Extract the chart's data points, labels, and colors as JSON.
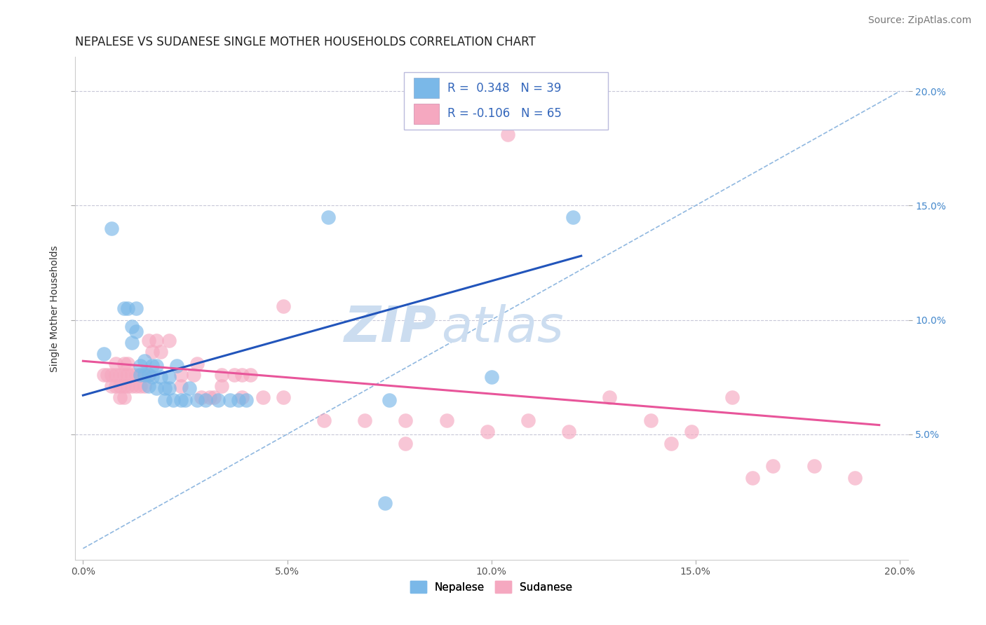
{
  "title": "NEPALESE VS SUDANESE SINGLE MOTHER HOUSEHOLDS CORRELATION CHART",
  "source": "Source: ZipAtlas.com",
  "ylabel": "Single Mother Households",
  "xlim": [
    -0.002,
    0.202
  ],
  "ylim": [
    -0.005,
    0.215
  ],
  "x_ticks": [
    0.0,
    0.05,
    0.1,
    0.15,
    0.2
  ],
  "x_tick_labels": [
    "0.0%",
    "5.0%",
    "10.0%",
    "15.0%",
    "20.0%"
  ],
  "y_ticks": [
    0.05,
    0.1,
    0.15,
    0.2
  ],
  "y_tick_labels": [
    "5.0%",
    "10.0%",
    "15.0%",
    "20.0%"
  ],
  "legend_entry1_label": "R =  0.348   N = 39",
  "legend_entry2_label": "R = -0.106   N = 65",
  "nepalese_color": "#7ab8e8",
  "sudanese_color": "#f5a8c0",
  "nepalese_scatter_alpha": 0.65,
  "sudanese_scatter_alpha": 0.65,
  "nepalese_line_color": "#2255bb",
  "sudanese_line_color": "#e8559a",
  "dashed_line_color": "#90b8e0",
  "legend_box_color": "#a8c8e8",
  "legend_box_color2": "#f5b8cc",
  "watermark_zip": "ZIP",
  "watermark_atlas": "atlas",
  "watermark_color": "#ccddf0",
  "background_color": "#ffffff",
  "grid_color": "#c8c8d8",
  "title_fontsize": 12,
  "source_fontsize": 10,
  "axis_label_fontsize": 10,
  "tick_fontsize": 10,
  "legend_fontsize": 12,
  "watermark_fontsize_zip": 52,
  "watermark_fontsize_atlas": 52,
  "scatter_size": 220,
  "nepalese_points": [
    [
      0.005,
      0.085
    ],
    [
      0.007,
      0.14
    ],
    [
      0.01,
      0.105
    ],
    [
      0.011,
      0.105
    ],
    [
      0.012,
      0.09
    ],
    [
      0.012,
      0.097
    ],
    [
      0.013,
      0.105
    ],
    [
      0.013,
      0.095
    ],
    [
      0.014,
      0.08
    ],
    [
      0.014,
      0.076
    ],
    [
      0.015,
      0.082
    ],
    [
      0.015,
      0.076
    ],
    [
      0.016,
      0.076
    ],
    [
      0.016,
      0.071
    ],
    [
      0.017,
      0.08
    ],
    [
      0.017,
      0.075
    ],
    [
      0.018,
      0.08
    ],
    [
      0.018,
      0.07
    ],
    [
      0.019,
      0.075
    ],
    [
      0.02,
      0.07
    ],
    [
      0.02,
      0.065
    ],
    [
      0.021,
      0.075
    ],
    [
      0.021,
      0.07
    ],
    [
      0.022,
      0.065
    ],
    [
      0.023,
      0.08
    ],
    [
      0.024,
      0.065
    ],
    [
      0.025,
      0.065
    ],
    [
      0.026,
      0.07
    ],
    [
      0.028,
      0.065
    ],
    [
      0.03,
      0.065
    ],
    [
      0.033,
      0.065
    ],
    [
      0.036,
      0.065
    ],
    [
      0.038,
      0.065
    ],
    [
      0.04,
      0.065
    ],
    [
      0.06,
      0.145
    ],
    [
      0.074,
      0.02
    ],
    [
      0.075,
      0.065
    ],
    [
      0.1,
      0.075
    ],
    [
      0.12,
      0.145
    ]
  ],
  "sudanese_points": [
    [
      0.005,
      0.076
    ],
    [
      0.006,
      0.076
    ],
    [
      0.007,
      0.076
    ],
    [
      0.007,
      0.071
    ],
    [
      0.008,
      0.081
    ],
    [
      0.008,
      0.076
    ],
    [
      0.008,
      0.071
    ],
    [
      0.009,
      0.076
    ],
    [
      0.009,
      0.071
    ],
    [
      0.009,
      0.066
    ],
    [
      0.01,
      0.081
    ],
    [
      0.01,
      0.076
    ],
    [
      0.01,
      0.071
    ],
    [
      0.01,
      0.066
    ],
    [
      0.011,
      0.081
    ],
    [
      0.011,
      0.076
    ],
    [
      0.011,
      0.071
    ],
    [
      0.012,
      0.076
    ],
    [
      0.012,
      0.071
    ],
    [
      0.013,
      0.076
    ],
    [
      0.013,
      0.071
    ],
    [
      0.014,
      0.076
    ],
    [
      0.014,
      0.071
    ],
    [
      0.015,
      0.076
    ],
    [
      0.015,
      0.071
    ],
    [
      0.016,
      0.076
    ],
    [
      0.016,
      0.091
    ],
    [
      0.017,
      0.086
    ],
    [
      0.018,
      0.091
    ],
    [
      0.019,
      0.086
    ],
    [
      0.021,
      0.091
    ],
    [
      0.024,
      0.076
    ],
    [
      0.024,
      0.071
    ],
    [
      0.027,
      0.076
    ],
    [
      0.028,
      0.081
    ],
    [
      0.029,
      0.066
    ],
    [
      0.031,
      0.066
    ],
    [
      0.032,
      0.066
    ],
    [
      0.034,
      0.071
    ],
    [
      0.034,
      0.076
    ],
    [
      0.037,
      0.076
    ],
    [
      0.039,
      0.066
    ],
    [
      0.039,
      0.076
    ],
    [
      0.041,
      0.076
    ],
    [
      0.044,
      0.066
    ],
    [
      0.049,
      0.106
    ],
    [
      0.049,
      0.066
    ],
    [
      0.059,
      0.056
    ],
    [
      0.069,
      0.056
    ],
    [
      0.079,
      0.046
    ],
    [
      0.079,
      0.056
    ],
    [
      0.089,
      0.056
    ],
    [
      0.099,
      0.051
    ],
    [
      0.104,
      0.181
    ],
    [
      0.109,
      0.056
    ],
    [
      0.119,
      0.051
    ],
    [
      0.129,
      0.066
    ],
    [
      0.139,
      0.056
    ],
    [
      0.144,
      0.046
    ],
    [
      0.149,
      0.051
    ],
    [
      0.159,
      0.066
    ],
    [
      0.164,
      0.031
    ],
    [
      0.169,
      0.036
    ],
    [
      0.179,
      0.036
    ],
    [
      0.189,
      0.031
    ]
  ],
  "nepalese_line": [
    [
      0.0,
      0.067
    ],
    [
      0.122,
      0.128
    ]
  ],
  "sudanese_line": [
    [
      0.0,
      0.082
    ],
    [
      0.195,
      0.054
    ]
  ],
  "dashed_line": [
    [
      0.0,
      0.0
    ],
    [
      0.2,
      0.2
    ]
  ]
}
